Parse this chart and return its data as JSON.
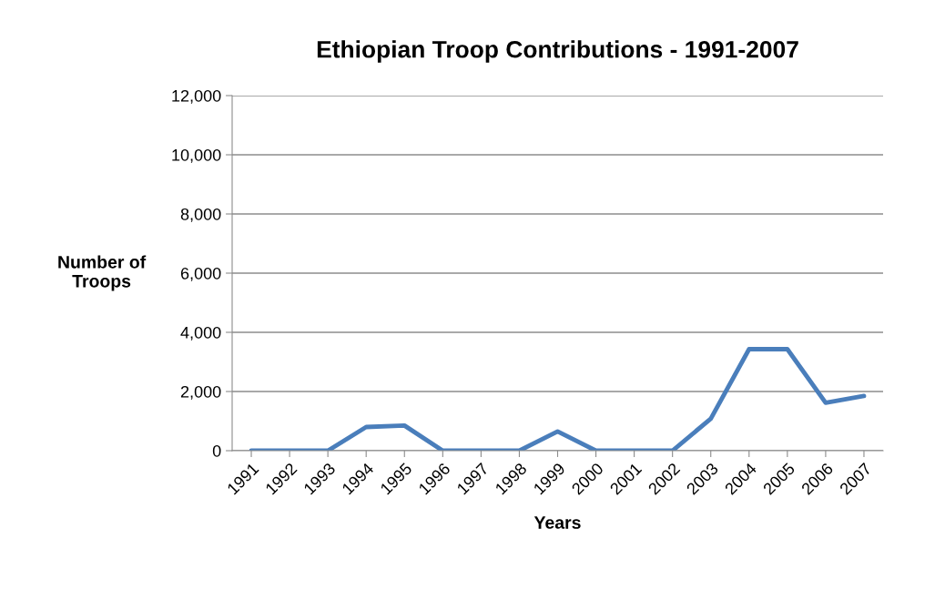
{
  "chart_data": {
    "type": "line",
    "title": "Ethiopian Troop Contributions - 1991-2007",
    "xlabel": "Years",
    "ylabel": "Number of\nTroops",
    "categories": [
      "1991",
      "1992",
      "1993",
      "1994",
      "1995",
      "1996",
      "1997",
      "1998",
      "1999",
      "2000",
      "2001",
      "2002",
      "2003",
      "2004",
      "2005",
      "2006",
      "2007"
    ],
    "series": [
      {
        "color": "#4a7ebb",
        "values": [
          0,
          0,
          0,
          800,
          850,
          0,
          0,
          0,
          650,
          0,
          0,
          0,
          1080,
          3430,
          3430,
          1620,
          1850
        ]
      }
    ],
    "ylim": [
      0,
      12000
    ],
    "yticks": [
      {
        "value": 0,
        "label": "0"
      },
      {
        "value": 2000,
        "label": "2,000"
      },
      {
        "value": 4000,
        "label": "4,000"
      },
      {
        "value": 6000,
        "label": "6,000"
      },
      {
        "value": 8000,
        "label": "8,000"
      },
      {
        "value": 10000,
        "label": "10,000"
      },
      {
        "value": 12000,
        "label": "12,000"
      }
    ],
    "grid": "y",
    "marker": "none",
    "line_style": "solid"
  }
}
